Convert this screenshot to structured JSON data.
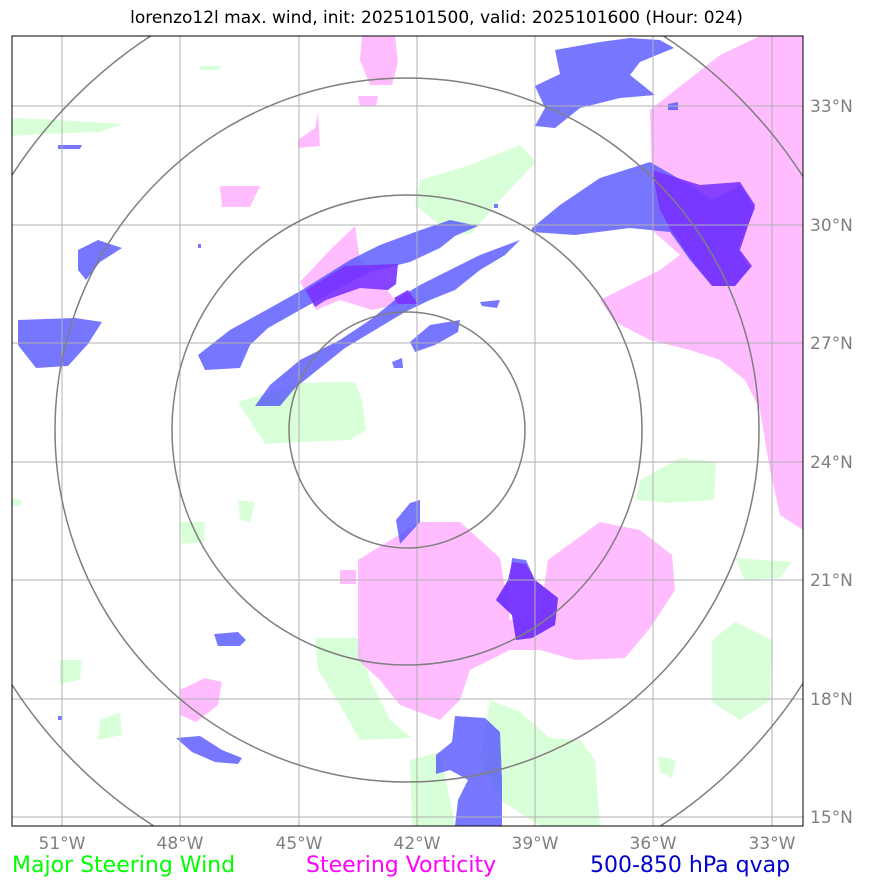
{
  "title": "lorenzo12l max. wind, init: 2025101500, valid: 2025101600 (Hour: 024)",
  "map": {
    "lon_ticks": [
      "51°W",
      "48°W",
      "45°W",
      "42°W",
      "39°W",
      "36°W",
      "33°W"
    ],
    "lat_ticks": [
      "33°N",
      "30°N",
      "27°N",
      "24°N",
      "21°N",
      "18°N",
      "15°N"
    ],
    "range_rings": 4,
    "colors": {
      "wind": "#ccffcc",
      "vorticity": "#ff99ff",
      "qvap": "#5555ff",
      "overlap": "#7a33ff",
      "rings": "#808080",
      "grid": "#b0b0b0"
    }
  },
  "legend": {
    "wind": {
      "label": "Major Steering Wind",
      "color": "#00ff00"
    },
    "vorticity": {
      "label": "Steering Vorticity",
      "color": "#ff00ff"
    },
    "qvap": {
      "label": "500-850 hPa qvap",
      "color": "#0000cc"
    }
  }
}
